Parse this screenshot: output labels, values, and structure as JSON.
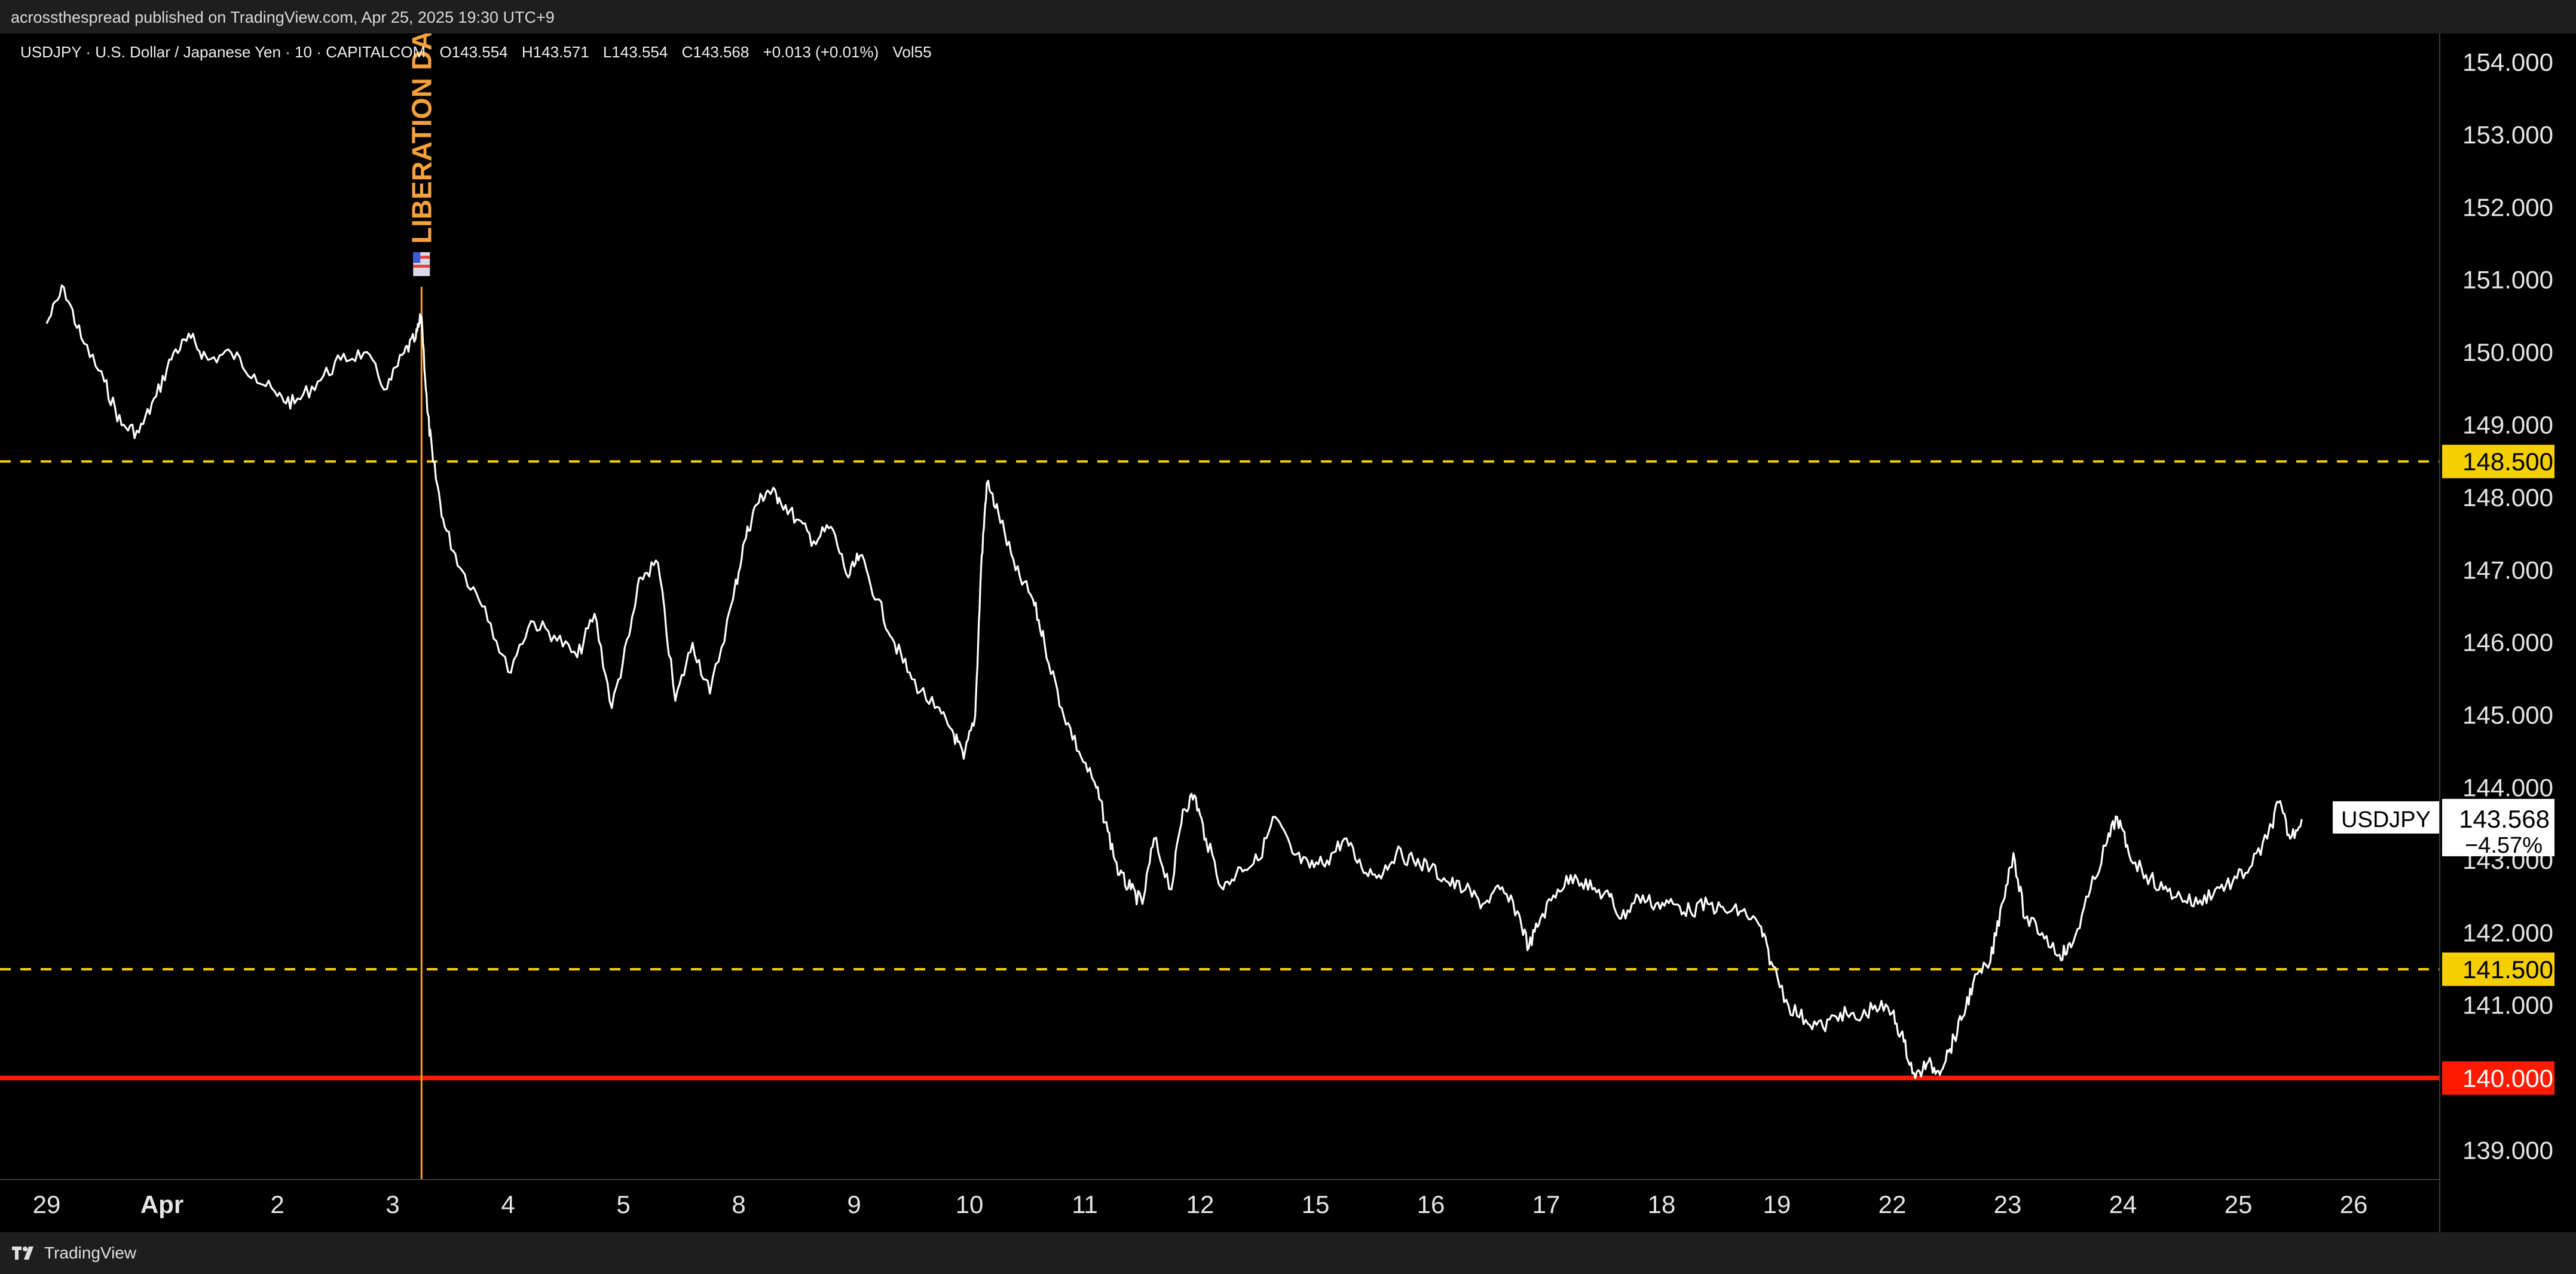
{
  "header": {
    "published_text": "acrossthespread published on TradingView.com, Apr 25, 2025 19:30 UTC+9"
  },
  "legend": {
    "symbol_desc": "USDJPY · U.S. Dollar / Japanese Yen · 10 · CAPITALCOM",
    "open": "O143.554",
    "high": "H143.571",
    "low": "L143.554",
    "close": "C143.568",
    "change": "+0.013 (+0.01%)",
    "volume": "Vol55"
  },
  "footer": {
    "brand": "TradingView"
  },
  "colors": {
    "background": "#000000",
    "price_line": "#ffffff",
    "dashed_level": "#f5d000",
    "support_level": "#ff1a00",
    "event_line": "#f5a13c",
    "axis_text": "#e6e6e6"
  },
  "chart_data": {
    "type": "line",
    "title": "",
    "xlabel": "",
    "ylabel": "",
    "ylim": [
      138.6,
      154.4
    ],
    "y_ticks": [
      "139.000",
      "140.000",
      "141.000",
      "142.000",
      "143.000",
      "144.000",
      "145.000",
      "146.000",
      "147.000",
      "148.000",
      "149.000",
      "150.000",
      "151.000",
      "152.000",
      "153.000",
      "154.000"
    ],
    "x_ticks": [
      "29",
      "Apr",
      "2",
      "3",
      "4",
      "5",
      "8",
      "9",
      "10",
      "11",
      "12",
      "15",
      "16",
      "17",
      "18",
      "19",
      "22",
      "23",
      "24",
      "25",
      "26"
    ],
    "series": [
      {
        "values": [
          [
            0.0,
            150.4
          ],
          [
            0.15,
            150.9
          ],
          [
            0.3,
            150.2
          ],
          [
            0.5,
            149.6
          ],
          [
            0.65,
            149.0
          ],
          [
            0.8,
            148.9
          ],
          [
            0.95,
            149.4
          ],
          [
            1.1,
            150.0
          ],
          [
            1.25,
            150.2
          ],
          [
            1.4,
            149.9
          ],
          [
            1.6,
            150.0
          ],
          [
            1.8,
            149.7
          ],
          [
            2.0,
            149.4
          ],
          [
            2.15,
            149.3
          ],
          [
            2.35,
            149.6
          ],
          [
            2.55,
            149.9
          ],
          [
            2.75,
            150.0
          ],
          [
            2.95,
            149.5
          ],
          [
            3.1,
            150.0
          ],
          [
            3.2,
            150.2
          ],
          [
            3.25,
            150.5
          ],
          [
            3.3,
            149.2
          ],
          [
            3.35,
            148.5
          ],
          [
            3.45,
            147.6
          ],
          [
            3.6,
            147.0
          ],
          [
            3.8,
            146.5
          ],
          [
            4.0,
            145.6
          ],
          [
            4.2,
            146.3
          ],
          [
            4.4,
            146.1
          ],
          [
            4.6,
            145.8
          ],
          [
            4.75,
            146.4
          ],
          [
            4.9,
            145.1
          ],
          [
            5.05,
            146.1
          ],
          [
            5.15,
            146.9
          ],
          [
            5.3,
            147.1
          ],
          [
            5.45,
            145.2
          ],
          [
            5.6,
            146.0
          ],
          [
            5.75,
            145.3
          ],
          [
            5.95,
            146.6
          ],
          [
            6.05,
            147.4
          ],
          [
            6.15,
            147.9
          ],
          [
            6.25,
            148.1
          ],
          [
            6.35,
            148.0
          ],
          [
            6.5,
            147.7
          ],
          [
            6.65,
            147.4
          ],
          [
            6.8,
            147.6
          ],
          [
            6.95,
            146.9
          ],
          [
            7.05,
            147.2
          ],
          [
            7.2,
            146.6
          ],
          [
            7.35,
            146.0
          ],
          [
            7.5,
            145.5
          ],
          [
            7.7,
            145.1
          ],
          [
            7.85,
            144.8
          ],
          [
            7.95,
            144.4
          ],
          [
            8.05,
            145.0
          ],
          [
            8.1,
            147.0
          ],
          [
            8.15,
            148.2
          ],
          [
            8.25,
            147.8
          ],
          [
            8.4,
            147.0
          ],
          [
            8.55,
            146.6
          ],
          [
            8.65,
            146.0
          ],
          [
            8.8,
            145.1
          ],
          [
            8.95,
            144.5
          ],
          [
            9.1,
            144.0
          ],
          [
            9.2,
            143.4
          ],
          [
            9.3,
            142.8
          ],
          [
            9.4,
            142.6
          ],
          [
            9.5,
            142.4
          ],
          [
            9.6,
            143.3
          ],
          [
            9.75,
            142.6
          ],
          [
            9.85,
            143.7
          ],
          [
            9.95,
            143.9
          ],
          [
            10.05,
            143.3
          ],
          [
            10.2,
            142.6
          ],
          [
            10.35,
            142.9
          ],
          [
            10.5,
            143.0
          ],
          [
            10.65,
            143.6
          ],
          [
            10.8,
            143.1
          ],
          [
            10.95,
            142.9
          ],
          [
            11.1,
            143.0
          ],
          [
            11.25,
            143.3
          ],
          [
            11.4,
            142.9
          ],
          [
            11.55,
            142.8
          ],
          [
            11.7,
            143.1
          ],
          [
            11.85,
            143.0
          ],
          [
            12.0,
            142.9
          ],
          [
            12.15,
            142.7
          ],
          [
            12.3,
            142.6
          ],
          [
            12.45,
            142.4
          ],
          [
            12.6,
            142.6
          ],
          [
            12.75,
            142.3
          ],
          [
            12.85,
            141.8
          ],
          [
            12.95,
            142.2
          ],
          [
            13.1,
            142.6
          ],
          [
            13.25,
            142.8
          ],
          [
            13.4,
            142.6
          ],
          [
            13.55,
            142.5
          ],
          [
            13.65,
            142.2
          ],
          [
            13.8,
            142.5
          ],
          [
            13.95,
            142.4
          ],
          [
            14.1,
            142.4
          ],
          [
            14.25,
            142.3
          ],
          [
            14.4,
            142.4
          ],
          [
            14.55,
            142.3
          ],
          [
            14.7,
            142.3
          ],
          [
            14.85,
            142.1
          ],
          [
            14.95,
            141.6
          ],
          [
            15.1,
            141.0
          ],
          [
            15.25,
            140.8
          ],
          [
            15.4,
            140.7
          ],
          [
            15.55,
            140.9
          ],
          [
            15.7,
            140.8
          ],
          [
            15.85,
            141.0
          ],
          [
            16.0,
            140.9
          ],
          [
            16.1,
            140.5
          ],
          [
            16.2,
            140.0
          ],
          [
            16.3,
            140.2
          ],
          [
            16.4,
            140.1
          ],
          [
            16.5,
            140.4
          ],
          [
            16.6,
            140.8
          ],
          [
            16.7,
            141.3
          ],
          [
            16.85,
            141.6
          ],
          [
            16.95,
            142.4
          ],
          [
            17.05,
            143.1
          ],
          [
            17.15,
            142.2
          ],
          [
            17.3,
            142.0
          ],
          [
            17.45,
            141.7
          ],
          [
            17.55,
            141.8
          ],
          [
            17.7,
            142.5
          ],
          [
            17.85,
            143.2
          ],
          [
            17.95,
            143.6
          ],
          [
            18.05,
            143.1
          ],
          [
            18.2,
            142.8
          ],
          [
            18.35,
            142.6
          ],
          [
            18.5,
            142.5
          ],
          [
            18.65,
            142.4
          ],
          [
            18.8,
            142.6
          ],
          [
            18.95,
            142.7
          ],
          [
            19.1,
            142.9
          ],
          [
            19.25,
            143.3
          ],
          [
            19.35,
            143.8
          ],
          [
            19.45,
            143.3
          ],
          [
            19.55,
            143.57
          ]
        ]
      }
    ],
    "horizontal_levels": [
      {
        "label": "148.500",
        "value": 148.5,
        "style": "dashed",
        "color": "#f5d000"
      },
      {
        "label": "141.500",
        "value": 141.5,
        "style": "dashed",
        "color": "#f5d000"
      },
      {
        "label": "140.000",
        "value": 140.0,
        "style": "solid",
        "color": "#ff1a00"
      }
    ],
    "vertical_event": {
      "label": "LIBERATION DAY",
      "x": 3.25,
      "color": "#f5a13c"
    },
    "last_price_tag": {
      "symbol": "USDJPY",
      "value": "143.568",
      "change": "−4.57%"
    },
    "legend_position": "top-left",
    "grid": false
  }
}
